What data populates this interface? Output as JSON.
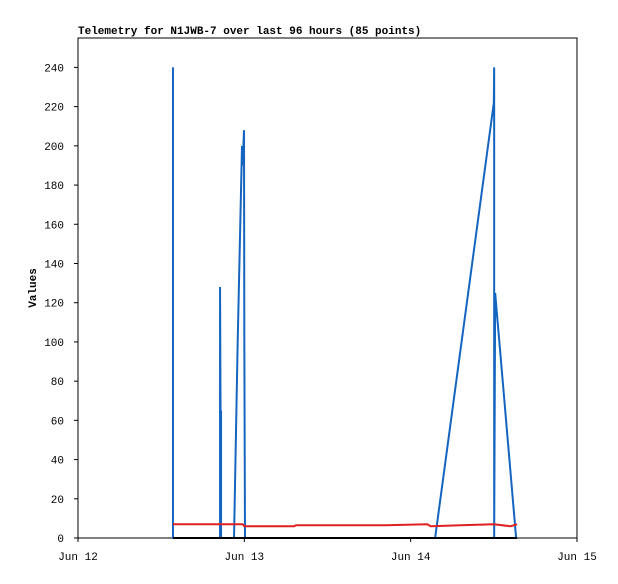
{
  "chart_data": {
    "type": "line",
    "title": "Telemetry for N1JWB-7 over last 96 hours (85 points)",
    "y_label": "Values",
    "xlim": [
      12,
      15
    ],
    "xticks": [
      {
        "value": 12,
        "label": "Jun 12"
      },
      {
        "value": 13,
        "label": "Jun 13"
      },
      {
        "value": 14,
        "label": "Jun 14"
      },
      {
        "value": 15,
        "label": "Jun 15"
      }
    ],
    "ylim": [
      0,
      255
    ],
    "yticks": [
      0,
      20,
      40,
      60,
      80,
      100,
      120,
      140,
      160,
      180,
      200,
      220,
      240
    ],
    "series": [
      {
        "color": "#1565c0",
        "x": [
          12.571,
          12.571,
          12.571,
          12.854,
          12.854,
          12.86,
          12.86,
          12.86,
          12.938,
          12.96,
          12.986,
          12.99,
          12.998,
          13.0,
          13.004,
          14.147,
          14.5,
          14.502,
          14.502,
          14.508,
          14.634
        ],
        "values": [
          0,
          240,
          0,
          0,
          128,
          0,
          65,
          0,
          0,
          100,
          200,
          190,
          208,
          100,
          0,
          0,
          222,
          240,
          0,
          125,
          0
        ]
      },
      {
        "color": "#e02020",
        "x": [
          12.571,
          12.99,
          13.0,
          13.3,
          13.31,
          13.85,
          14.1,
          14.12,
          14.3,
          14.5,
          14.6,
          14.64
        ],
        "values": [
          7,
          7,
          6,
          6,
          6.5,
          6.5,
          7,
          6,
          6.5,
          7,
          6,
          7
        ]
      },
      {
        "color": "#000000",
        "x": [
          12.571,
          14.64
        ],
        "values": [
          0,
          0
        ]
      }
    ]
  }
}
